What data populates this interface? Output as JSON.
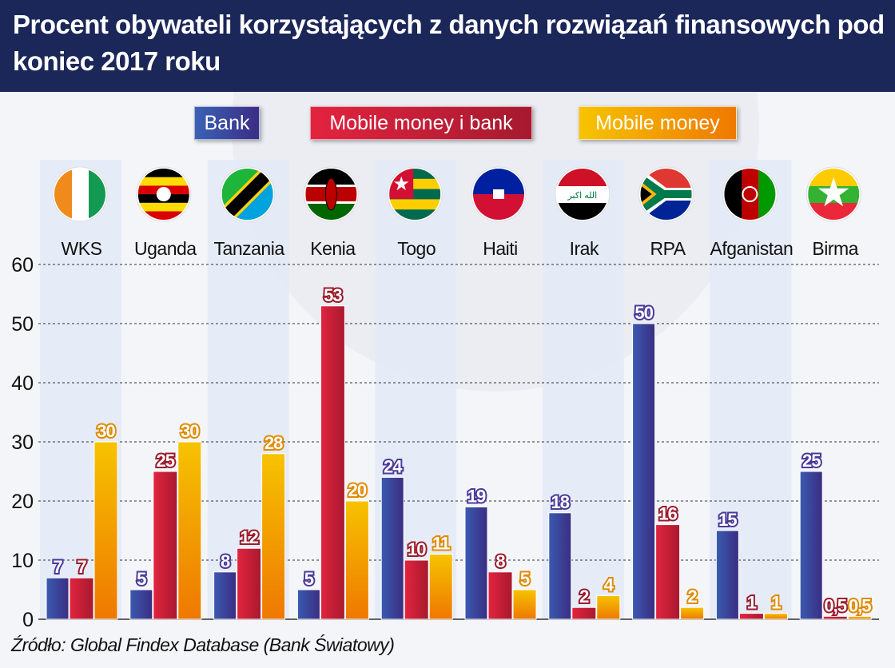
{
  "title": "Procent obywateli korzystających z danych rozwiązań finansowych pod koniec 2017 roku",
  "source": "Źródło: Global Findex Database (Bank Światowy)",
  "chart_data": {
    "type": "bar",
    "title": "Procent obywateli korzystających z danych rozwiązań finansowych pod koniec 2017 roku",
    "categories": [
      "WKS",
      "Uganda",
      "Tanzania",
      "Kenia",
      "Togo",
      "Haiti",
      "Irak",
      "RPA",
      "Afganistan",
      "Birma"
    ],
    "flag_icons": [
      "flag-ivory-coast-icon",
      "flag-uganda-icon",
      "flag-tanzania-icon",
      "flag-kenya-icon",
      "flag-togo-icon",
      "flag-haiti-icon",
      "flag-iraq-icon",
      "flag-south-africa-icon",
      "flag-afghanistan-icon",
      "flag-myanmar-icon"
    ],
    "series": [
      {
        "name": "Bank",
        "color": "#3b4aa0",
        "values": [
          7,
          5,
          8,
          5,
          24,
          19,
          18,
          50,
          15,
          25
        ],
        "labels": [
          "7",
          "5",
          "8",
          "5",
          "24",
          "19",
          "18",
          "50",
          "15",
          "25"
        ]
      },
      {
        "name": "Mobile money i bank",
        "color": "#c51f35",
        "values": [
          7,
          25,
          12,
          53,
          10,
          8,
          2,
          16,
          1,
          0.5
        ],
        "labels": [
          "7",
          "25",
          "12",
          "53",
          "10",
          "8",
          "2",
          "16",
          "1",
          "0,5"
        ]
      },
      {
        "name": "Mobile money",
        "color": "#f39a00",
        "values": [
          30,
          30,
          28,
          20,
          11,
          5,
          4,
          2,
          1,
          0.5
        ],
        "labels": [
          "30",
          "30",
          "28",
          "20",
          "11",
          "5",
          "4",
          "2",
          "1",
          "0,5"
        ]
      }
    ],
    "yticks": [
      "0",
      "10",
      "20",
      "30",
      "40",
      "50",
      "60"
    ],
    "ylim": [
      0,
      60
    ],
    "grid": true,
    "legend": "top"
  }
}
